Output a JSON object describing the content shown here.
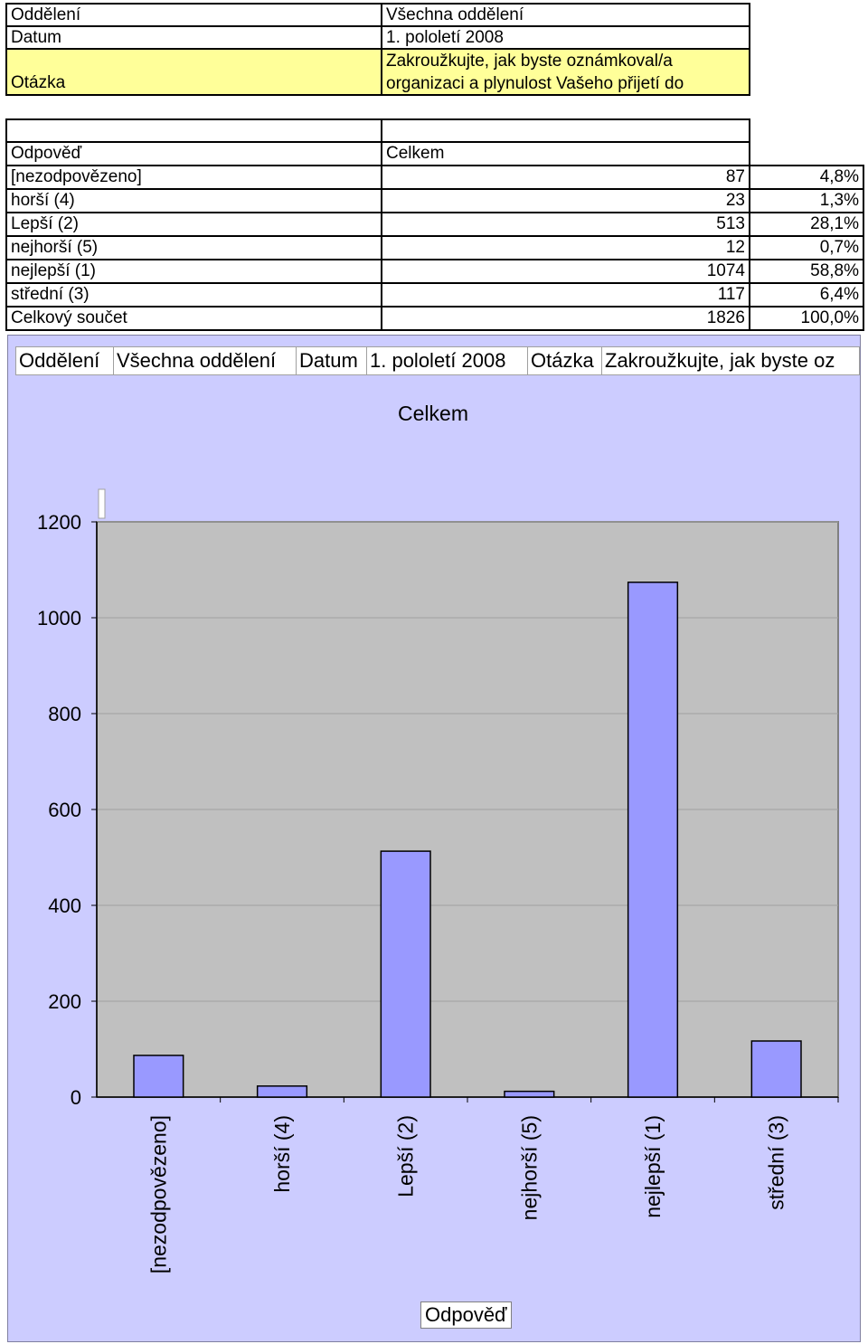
{
  "header": {
    "department_label": "Oddělení",
    "department_value": "Všechna oddělení",
    "date_label": "Datum",
    "date_value": "1. pololetí 2008",
    "question_label": "Otázka",
    "question_line1": "Zakroužkujte, jak byste oznámkoval/a",
    "question_line2": "organizaci a plynulost Vašeho přijetí do"
  },
  "table": {
    "answer_header": "Odpověď",
    "total_header": "Celkem",
    "rows": [
      {
        "label": "[nezodpovězeno]",
        "count": "87",
        "percent": "4,8%"
      },
      {
        "label": "horší  (4)",
        "count": "23",
        "percent": "1,3%"
      },
      {
        "label": "Lepší  (2)",
        "count": "513",
        "percent": "28,1%"
      },
      {
        "label": "nejhorší (5)",
        "count": "12",
        "percent": "0,7%"
      },
      {
        "label": "nejlepší  (1)",
        "count": "1074",
        "percent": "58,8%"
      },
      {
        "label": "střední  (3)",
        "count": "117",
        "percent": "6,4%"
      }
    ],
    "total_row": {
      "label": "Celkový součet",
      "count": "1826",
      "percent": "100,0%"
    }
  },
  "chart_filters": [
    "Oddělení",
    "Všechna oddělení",
    "Datum",
    "1. pololetí 2008",
    "Otázka",
    "Zakroužkujte, jak byste oz"
  ],
  "chart_data": {
    "type": "bar",
    "title": "Celkem",
    "xlabel": "Odpověď",
    "ylabel": "",
    "categories": [
      "[nezodpovězeno]",
      "horší  (4)",
      "Lepší  (2)",
      "nejhorší (5)",
      "nejlepší  (1)",
      "střední  (3)"
    ],
    "values": [
      87,
      23,
      513,
      12,
      1074,
      117
    ],
    "ylim": [
      0,
      1200
    ],
    "yticks": [
      0,
      200,
      400,
      600,
      800,
      1000,
      1200
    ],
    "ytick_labels": [
      "0",
      "200",
      "400",
      "600",
      "800",
      "1000",
      "1200"
    ],
    "grid": true,
    "legend": "none",
    "colors": {
      "bar": "#9999ff",
      "plot_background": "#c0c0c0",
      "chart_background": "#ccccff",
      "gridline": "#a0a0a0"
    }
  }
}
